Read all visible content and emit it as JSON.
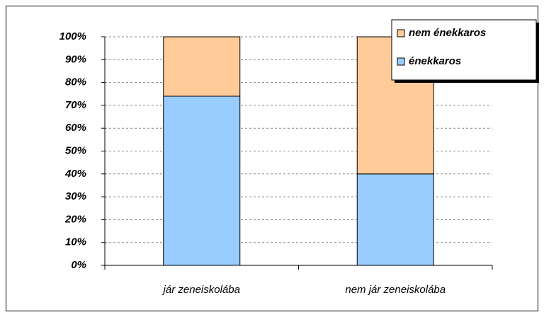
{
  "chart_data": {
    "type": "stacked_bar",
    "categories": [
      "jár zeneiskolába",
      "nem jár zeneiskolába"
    ],
    "series": [
      {
        "name": "énekkaros",
        "color": "#99ccff",
        "values": [
          74,
          40
        ]
      },
      {
        "name": "nem énekkaros",
        "color": "#ffcc99",
        "values": [
          26,
          60
        ]
      }
    ],
    "ylim": [
      0,
      100
    ],
    "yticks": [
      {
        "value": 0,
        "label": "0%"
      },
      {
        "value": 10,
        "label": "10%"
      },
      {
        "value": 20,
        "label": "20%"
      },
      {
        "value": 30,
        "label": "30%"
      },
      {
        "value": 40,
        "label": "40%"
      },
      {
        "value": 50,
        "label": "50%"
      },
      {
        "value": 60,
        "label": "60%"
      },
      {
        "value": 70,
        "label": "70%"
      },
      {
        "value": 80,
        "label": "80%"
      },
      {
        "value": 90,
        "label": "90%"
      },
      {
        "value": 100,
        "label": "100%"
      }
    ],
    "grid": true,
    "legend": "top-right"
  }
}
